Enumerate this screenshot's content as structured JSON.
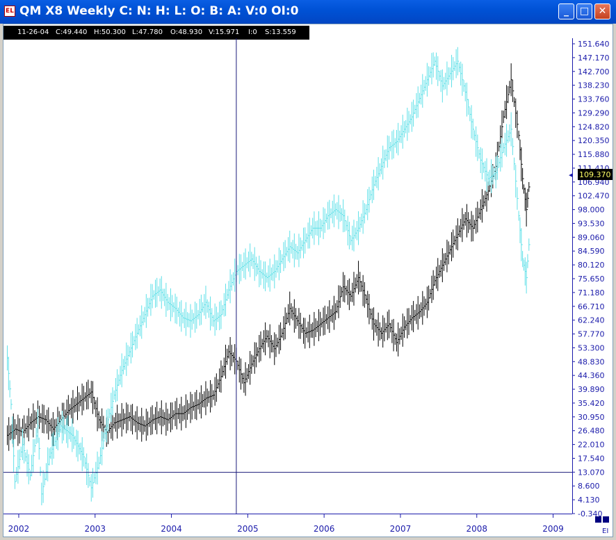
{
  "window": {
    "title": "QM X8 Weekly C: N: H: L: O: B: A: V:0 OI:0",
    "buttons": [
      "_",
      "□",
      "✕"
    ]
  },
  "info_bar": {
    "date": "11-26-04",
    "close": "C:49.440",
    "high": "H:50.300",
    "low": "L:47.780",
    "open": "O:48.930",
    "volume": "V:15.971",
    "oi": "I:0",
    "s": "S:13.559"
  },
  "colors": {
    "primary_series": "#000000",
    "secondary_series": "#5ee0e8",
    "axis": "#1a1aaa",
    "crosshair": "#1a1a7a",
    "price_badge_bg": "#000000",
    "price_badge_fg": "#ffff66"
  },
  "corner_label": "EI",
  "chart_data": {
    "type": "line",
    "style": "ohlc-bars",
    "y_ticks": [
      "151.640",
      "147.170",
      "142.700",
      "138.230",
      "133.760",
      "129.290",
      "124.820",
      "120.350",
      "115.880",
      "111.410",
      "106.940",
      "102.470",
      "98.000",
      "93.530",
      "89.060",
      "84.590",
      "80.120",
      "75.650",
      "71.180",
      "66.710",
      "62.240",
      "57.770",
      "53.300",
      "48.830",
      "44.360",
      "39.890",
      "35.420",
      "30.950",
      "26.480",
      "22.010",
      "17.540",
      "13.070",
      "8.600",
      "4.130",
      "-0.340"
    ],
    "x_ticks": [
      "2002",
      "2003",
      "2004",
      "2005",
      "2006",
      "2007",
      "2008",
      "2009"
    ],
    "ylim": [
      -0.34,
      151.64
    ],
    "xlim": [
      2001.85,
      2009.3
    ],
    "last_price": "109.370",
    "crosshair": {
      "x": 2004.9,
      "y": 13.0
    },
    "grid": false,
    "series": [
      {
        "points": [
          [
            2001.9,
            25
          ],
          [
            2002.0,
            27
          ],
          [
            2002.1,
            26
          ],
          [
            2002.2,
            29
          ],
          [
            2002.3,
            31
          ],
          [
            2002.4,
            30
          ],
          [
            2002.5,
            27
          ],
          [
            2002.6,
            30
          ],
          [
            2002.7,
            33
          ],
          [
            2002.8,
            35
          ],
          [
            2002.9,
            37
          ],
          [
            2003.0,
            39
          ],
          [
            2003.1,
            30
          ],
          [
            2003.2,
            26
          ],
          [
            2003.3,
            29
          ],
          [
            2003.4,
            30
          ],
          [
            2003.5,
            31
          ],
          [
            2003.6,
            29
          ],
          [
            2003.7,
            28
          ],
          [
            2003.8,
            30
          ],
          [
            2003.9,
            31
          ],
          [
            2004.0,
            30
          ],
          [
            2004.1,
            32
          ],
          [
            2004.2,
            32
          ],
          [
            2004.3,
            34
          ],
          [
            2004.4,
            35
          ],
          [
            2004.5,
            37
          ],
          [
            2004.6,
            38
          ],
          [
            2004.7,
            44
          ],
          [
            2004.8,
            52
          ],
          [
            2004.9,
            49
          ],
          [
            2005.0,
            42
          ],
          [
            2005.1,
            48
          ],
          [
            2005.2,
            53
          ],
          [
            2005.3,
            57
          ],
          [
            2005.4,
            53
          ],
          [
            2005.5,
            58
          ],
          [
            2005.6,
            66
          ],
          [
            2005.7,
            62
          ],
          [
            2005.8,
            58
          ],
          [
            2005.9,
            59
          ],
          [
            2006.0,
            61
          ],
          [
            2006.1,
            63
          ],
          [
            2006.2,
            65
          ],
          [
            2006.3,
            73
          ],
          [
            2006.4,
            70
          ],
          [
            2006.5,
            76
          ],
          [
            2006.6,
            69
          ],
          [
            2006.7,
            61
          ],
          [
            2006.8,
            58
          ],
          [
            2006.9,
            61
          ],
          [
            2007.0,
            55
          ],
          [
            2007.1,
            60
          ],
          [
            2007.2,
            63
          ],
          [
            2007.3,
            65
          ],
          [
            2007.4,
            68
          ],
          [
            2007.5,
            75
          ],
          [
            2007.6,
            80
          ],
          [
            2007.7,
            85
          ],
          [
            2007.8,
            90
          ],
          [
            2007.9,
            95
          ],
          [
            2008.0,
            92
          ],
          [
            2008.1,
            98
          ],
          [
            2008.2,
            104
          ],
          [
            2008.3,
            112
          ],
          [
            2008.4,
            128
          ],
          [
            2008.5,
            140
          ],
          [
            2008.6,
            122
          ],
          [
            2008.65,
            108
          ],
          [
            2008.7,
            98
          ],
          [
            2008.75,
            109
          ]
        ]
      },
      {
        "points": [
          [
            2001.9,
            50
          ],
          [
            2001.95,
            35
          ],
          [
            2002.0,
            10
          ],
          [
            2002.1,
            22
          ],
          [
            2002.2,
            12
          ],
          [
            2002.3,
            28
          ],
          [
            2002.35,
            6
          ],
          [
            2002.45,
            18
          ],
          [
            2002.6,
            28
          ],
          [
            2002.75,
            25
          ],
          [
            2002.9,
            18
          ],
          [
            2003.0,
            8
          ],
          [
            2003.1,
            16
          ],
          [
            2003.2,
            28
          ],
          [
            2003.3,
            38
          ],
          [
            2003.4,
            46
          ],
          [
            2003.5,
            52
          ],
          [
            2003.6,
            58
          ],
          [
            2003.7,
            64
          ],
          [
            2003.8,
            70
          ],
          [
            2003.9,
            72
          ],
          [
            2004.0,
            68
          ],
          [
            2004.1,
            66
          ],
          [
            2004.2,
            63
          ],
          [
            2004.3,
            62
          ],
          [
            2004.4,
            64
          ],
          [
            2004.5,
            68
          ],
          [
            2004.6,
            62
          ],
          [
            2004.7,
            64
          ],
          [
            2004.8,
            72
          ],
          [
            2004.9,
            78
          ],
          [
            2005.0,
            80
          ],
          [
            2005.1,
            82
          ],
          [
            2005.2,
            78
          ],
          [
            2005.3,
            76
          ],
          [
            2005.4,
            78
          ],
          [
            2005.5,
            82
          ],
          [
            2005.6,
            86
          ],
          [
            2005.7,
            84
          ],
          [
            2005.8,
            88
          ],
          [
            2005.9,
            92
          ],
          [
            2006.0,
            92
          ],
          [
            2006.1,
            96
          ],
          [
            2006.2,
            98
          ],
          [
            2006.3,
            96
          ],
          [
            2006.4,
            88
          ],
          [
            2006.5,
            92
          ],
          [
            2006.6,
            98
          ],
          [
            2006.7,
            106
          ],
          [
            2006.8,
            112
          ],
          [
            2006.9,
            118
          ],
          [
            2007.0,
            120
          ],
          [
            2007.1,
            124
          ],
          [
            2007.2,
            128
          ],
          [
            2007.3,
            134
          ],
          [
            2007.4,
            140
          ],
          [
            2007.5,
            146
          ],
          [
            2007.6,
            138
          ],
          [
            2007.7,
            142
          ],
          [
            2007.8,
            146
          ],
          [
            2007.9,
            136
          ],
          [
            2008.0,
            124
          ],
          [
            2008.1,
            114
          ],
          [
            2008.2,
            108
          ],
          [
            2008.3,
            110
          ],
          [
            2008.4,
            118
          ],
          [
            2008.5,
            124
          ],
          [
            2008.6,
            96
          ],
          [
            2008.65,
            82
          ],
          [
            2008.7,
            76
          ],
          [
            2008.75,
            92
          ]
        ]
      }
    ]
  }
}
